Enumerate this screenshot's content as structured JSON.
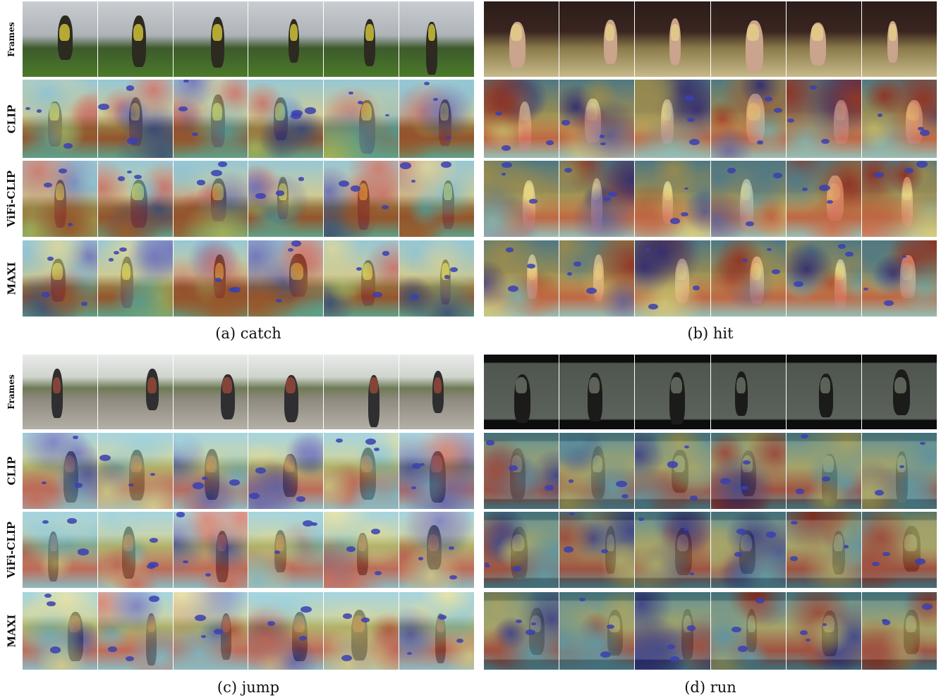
{
  "row_labels": [
    "Frames",
    "CLIP",
    "ViFi-CLIP",
    "MAXI"
  ],
  "panels": [
    {
      "id": "a",
      "caption": "(a) catch"
    },
    {
      "id": "b",
      "caption": "(b) hit"
    },
    {
      "id": "c",
      "caption": "(c) jump"
    },
    {
      "id": "d",
      "caption": "(d) run"
    }
  ],
  "frames_per_row": 6,
  "colors": {
    "heat_warm": "#d9482e",
    "heat_mid": "#e8e07a",
    "heat_cool": "#6ec3d8",
    "heat_cold": "#3a3fb0"
  }
}
